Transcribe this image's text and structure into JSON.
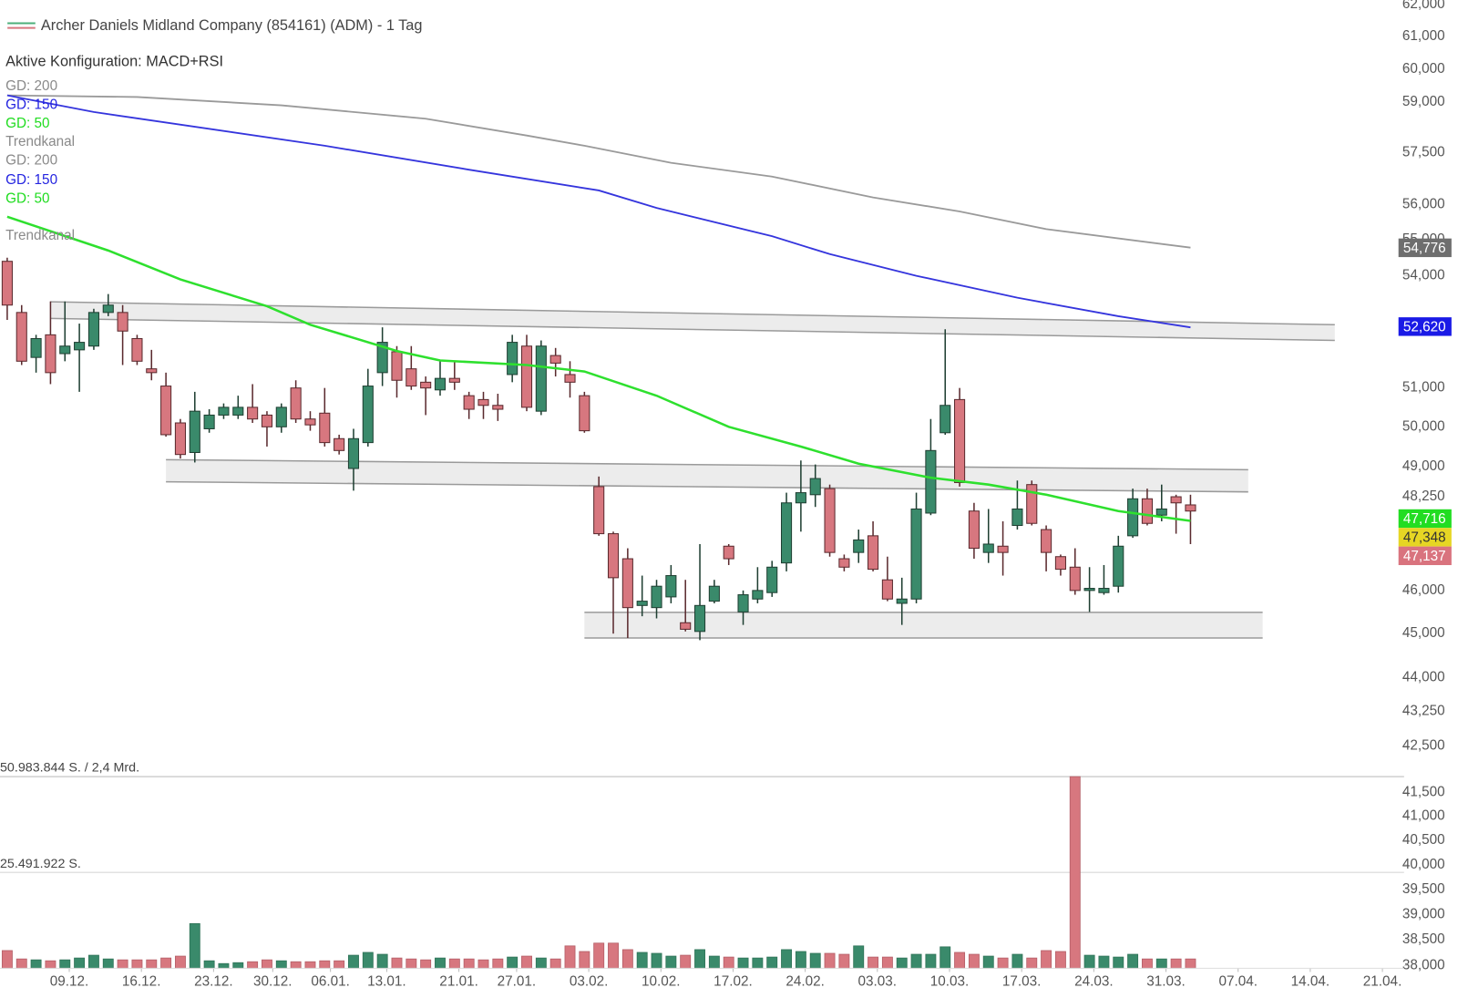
{
  "chart_data": {
    "type": "candlestick",
    "title": "Archer Daniels Midland Company (854161) (ADM) - 1 Tag",
    "subtitle": "Aktive Konfiguration: MACD+RSI",
    "legend": [
      {
        "text": "GD: 200",
        "color": "#8a8a8a"
      },
      {
        "text": "GD: 150",
        "color": "#2424e0"
      },
      {
        "text": "GD: 50",
        "color": "#1fdc1f"
      },
      {
        "text": "Trendkanal",
        "color": "#8a8a8a"
      },
      {
        "text": "GD: 200",
        "color": "#8a8a8a"
      },
      {
        "text": "GD: 150",
        "color": "#2424e0"
      },
      {
        "text": "GD: 50",
        "color": "#1fdc1f"
      },
      {
        "text": "Trendkanal",
        "color": "#8a8a8a"
      }
    ],
    "colors": {
      "up": "#3a8a6b",
      "down": "#d7777f",
      "up_edge": "#1f3f32",
      "down_edge": "#5a2a2e"
    },
    "log": true,
    "ylim": [
      38,
      62
    ],
    "yticks": [
      {
        "value": 62,
        "label": "62,000"
      },
      {
        "value": 61,
        "label": "61,000"
      },
      {
        "value": 60,
        "label": "60,000"
      },
      {
        "value": 59,
        "label": "59,000"
      },
      {
        "value": 57.5,
        "label": "57,500"
      },
      {
        "value": 56,
        "label": "56,000"
      },
      {
        "value": 55,
        "label": "55,000"
      },
      {
        "value": 54,
        "label": "54,000"
      },
      {
        "value": 51,
        "label": "51,000"
      },
      {
        "value": 50,
        "label": "50,000"
      },
      {
        "value": 49,
        "label": "49,000"
      },
      {
        "value": 48.25,
        "label": "48,250"
      },
      {
        "value": 46,
        "label": "46,000"
      },
      {
        "value": 45,
        "label": "45,000"
      },
      {
        "value": 44,
        "label": "44,000"
      },
      {
        "value": 43.25,
        "label": "43,250"
      },
      {
        "value": 42.5,
        "label": "42,500"
      },
      {
        "value": 41.5,
        "label": "41,500"
      },
      {
        "value": 41,
        "label": "41,000"
      },
      {
        "value": 40.5,
        "label": "40,500"
      },
      {
        "value": 40,
        "label": "40,000"
      },
      {
        "value": 39.5,
        "label": "39,500"
      },
      {
        "value": 39,
        "label": "39,000"
      },
      {
        "value": 38.5,
        "label": "38,500"
      },
      {
        "value": 38,
        "label": "38,000"
      }
    ],
    "xlim": [
      -0.5,
      96.8
    ],
    "xticks": [
      {
        "value": 4.3,
        "label": "09.12."
      },
      {
        "value": 9.3,
        "label": "16.12."
      },
      {
        "value": 14.3,
        "label": "23.12."
      },
      {
        "value": 18.4,
        "label": "30.12."
      },
      {
        "value": 22.4,
        "label": "06.01."
      },
      {
        "value": 26.3,
        "label": "13.01."
      },
      {
        "value": 31.3,
        "label": "21.01."
      },
      {
        "value": 35.3,
        "label": "27.01."
      },
      {
        "value": 40.3,
        "label": "03.02."
      },
      {
        "value": 45.3,
        "label": "10.02."
      },
      {
        "value": 50.3,
        "label": "17.02."
      },
      {
        "value": 55.3,
        "label": "24.02."
      },
      {
        "value": 60.3,
        "label": "03.03."
      },
      {
        "value": 65.3,
        "label": "10.03."
      },
      {
        "value": 70.3,
        "label": "17.03."
      },
      {
        "value": 75.3,
        "label": "24.03."
      },
      {
        "value": 80.3,
        "label": "31.03."
      },
      {
        "value": 85.3,
        "label": "07.04."
      },
      {
        "value": 90.3,
        "label": "14.04."
      },
      {
        "value": 95.3,
        "label": "21.04."
      }
    ],
    "open": [
      54.4,
      53.0,
      51.8,
      52.4,
      51.9,
      52.0,
      52.1,
      53.0,
      53.0,
      52.3,
      51.5,
      51.05,
      50.1,
      49.35,
      49.95,
      50.3,
      50.3,
      50.5,
      50.3,
      50.0,
      51.0,
      50.2,
      50.35,
      49.7,
      48.95,
      49.6,
      51.4,
      51.95,
      51.5,
      51.15,
      50.95,
      51.25,
      50.8,
      50.7,
      50.55,
      51.35,
      52.1,
      50.4,
      51.85,
      51.35,
      50.8,
      48.5,
      47.35,
      46.75,
      45.65,
      45.6,
      45.85,
      45.25,
      45.05,
      45.75,
      47.05,
      45.5,
      45.8,
      45.95,
      46.65,
      48.1,
      48.3,
      48.45,
      46.75,
      46.9,
      47.3,
      46.25,
      45.7,
      45.8,
      47.85,
      49.85,
      50.7,
      47.9,
      46.9,
      47.05,
      47.55,
      48.55,
      47.45,
      46.8,
      46.55,
      46.0,
      45.95,
      46.1,
      47.3,
      48.2,
      47.8,
      48.25,
      48.05
    ],
    "high": [
      54.5,
      53.2,
      52.4,
      53.3,
      53.3,
      52.7,
      53.1,
      53.5,
      53.2,
      52.4,
      52.0,
      51.4,
      50.2,
      50.9,
      50.45,
      50.6,
      50.8,
      51.1,
      50.4,
      50.6,
      51.2,
      50.4,
      51.0,
      49.8,
      49.95,
      51.5,
      52.6,
      52.1,
      52.1,
      51.3,
      51.7,
      51.7,
      50.9,
      50.9,
      50.85,
      52.4,
      52.4,
      52.25,
      52.05,
      51.7,
      50.9,
      48.75,
      47.4,
      47.0,
      46.35,
      46.25,
      46.6,
      46.25,
      47.1,
      46.25,
      47.1,
      46.0,
      46.55,
      46.7,
      48.35,
      49.15,
      49.05,
      48.55,
      46.85,
      47.45,
      47.65,
      46.8,
      46.3,
      48.35,
      50.2,
      52.55,
      51.0,
      48.1,
      47.95,
      47.65,
      48.65,
      48.65,
      47.55,
      46.85,
      47.0,
      46.55,
      46.6,
      47.3,
      48.45,
      48.45,
      48.55,
      48.3,
      48.3
    ],
    "low": [
      52.8,
      51.6,
      51.4,
      51.1,
      51.7,
      50.9,
      52.0,
      52.9,
      51.6,
      51.6,
      51.2,
      49.75,
      49.2,
      49.1,
      49.85,
      50.2,
      50.2,
      50.1,
      49.5,
      49.85,
      50.1,
      49.9,
      49.5,
      49.3,
      48.4,
      49.5,
      51.05,
      50.75,
      50.95,
      50.3,
      50.8,
      50.95,
      50.2,
      50.2,
      50.15,
      51.15,
      50.4,
      50.3,
      51.3,
      50.75,
      49.85,
      47.3,
      45.0,
      44.9,
      45.4,
      45.35,
      45.7,
      45.05,
      44.85,
      45.7,
      46.6,
      45.2,
      45.7,
      45.85,
      46.45,
      47.4,
      48.0,
      46.8,
      46.45,
      46.65,
      46.45,
      45.75,
      45.2,
      45.7,
      47.8,
      49.8,
      48.5,
      46.75,
      46.65,
      46.35,
      47.45,
      47.55,
      46.45,
      46.35,
      45.9,
      45.5,
      45.9,
      45.95,
      47.25,
      47.55,
      47.65,
      47.35,
      47.1
    ],
    "close": [
      53.2,
      51.7,
      52.3,
      51.4,
      52.1,
      52.2,
      53.0,
      53.2,
      52.5,
      51.7,
      51.4,
      49.8,
      49.3,
      50.4,
      50.3,
      50.5,
      50.5,
      50.2,
      50.0,
      50.5,
      50.2,
      50.05,
      49.6,
      49.4,
      49.7,
      51.05,
      52.2,
      51.2,
      51.05,
      51.0,
      51.25,
      51.15,
      50.45,
      50.55,
      50.45,
      52.2,
      50.5,
      52.1,
      51.65,
      51.15,
      49.9,
      47.35,
      46.3,
      45.6,
      45.75,
      46.1,
      46.35,
      45.1,
      45.65,
      46.1,
      46.75,
      45.9,
      46.0,
      46.55,
      48.1,
      48.35,
      48.7,
      46.9,
      46.55,
      47.2,
      46.5,
      45.8,
      45.8,
      47.95,
      49.4,
      50.55,
      48.6,
      47.0,
      47.1,
      46.9,
      47.95,
      47.6,
      46.9,
      46.5,
      46.0,
      46.05,
      46.05,
      47.05,
      48.2,
      47.6,
      47.95,
      48.1,
      47.9
    ],
    "moving_averages": [
      {
        "name": "GD: 200",
        "color": "#9a9a9a",
        "x": [
          0,
          9,
          19,
          29,
          36,
          40,
          46,
          53,
          60,
          66,
          72,
          82
        ],
        "values": [
          59.2,
          59.15,
          58.9,
          58.5,
          58.0,
          57.7,
          57.2,
          56.8,
          56.2,
          55.8,
          55.3,
          54.78
        ]
      },
      {
        "name": "GD: 150",
        "color": "#3535dd",
        "x": [
          0,
          6,
          22,
          32,
          41,
          45,
          53,
          57,
          63,
          70,
          77,
          82
        ],
        "values": [
          59.2,
          58.7,
          57.7,
          57.0,
          56.4,
          55.9,
          55.1,
          54.6,
          54.0,
          53.4,
          52.9,
          52.6
        ]
      },
      {
        "name": "GD: 50",
        "color": "#2ee02e",
        "x": [
          0,
          7,
          12,
          18,
          21,
          27,
          30,
          36,
          40,
          45,
          50,
          55,
          59,
          64,
          68,
          72,
          77,
          82
        ],
        "values": [
          55.65,
          54.7,
          53.9,
          53.17,
          52.67,
          51.97,
          51.72,
          51.6,
          51.43,
          50.8,
          50.0,
          49.5,
          49.07,
          48.72,
          48.55,
          48.3,
          47.9,
          47.66
        ]
      }
    ],
    "channels": [
      {
        "x": [
          3,
          92
        ],
        "upper": [
          53.29,
          52.67
        ],
        "lower": [
          52.84,
          52.25
        ]
      },
      {
        "x": [
          11,
          86
        ],
        "upper": [
          49.17,
          48.92
        ],
        "lower": [
          48.62,
          48.37
        ]
      },
      {
        "x": [
          40,
          87
        ],
        "upper": [
          45.49,
          45.49
        ],
        "lower": [
          44.9,
          44.9
        ]
      }
    ],
    "volume": {
      "values": [
        4700000,
        2470000,
        2230000,
        1980000,
        2230000,
        2720000,
        3460000,
        2470000,
        2230000,
        2230000,
        2230000,
        2720000,
        3220000,
        11880000,
        1980000,
        1240000,
        1480000,
        1730000,
        2230000,
        1980000,
        1730000,
        1730000,
        1980000,
        1980000,
        3460000,
        4210000,
        3710000,
        2720000,
        2470000,
        2230000,
        2720000,
        2470000,
        2470000,
        2230000,
        2470000,
        2970000,
        3220000,
        2720000,
        2470000,
        5940000,
        4450000,
        6680000,
        6680000,
        4950000,
        4210000,
        3960000,
        3220000,
        3460000,
        4950000,
        3220000,
        2970000,
        2720000,
        2720000,
        2970000,
        4950000,
        4450000,
        3960000,
        3960000,
        3710000,
        5940000,
        2970000,
        2970000,
        2720000,
        3710000,
        3710000,
        5690000,
        4210000,
        3710000,
        3220000,
        2720000,
        3710000,
        2720000,
        4700000,
        4450000,
        50983844,
        3460000,
        3220000,
        2970000,
        3710000,
        2470000,
        2470000,
        2470000,
        2470000
      ],
      "ylim": [
        0,
        50983844
      ],
      "yticks": [
        {
          "value": 50983844,
          "label": "50.983.844 S. / 2,4 Mrd."
        },
        {
          "value": 25491922,
          "label": "25.491.922 S."
        }
      ]
    },
    "price_tags": [
      {
        "value": 54.776,
        "label": "54,776",
        "color": "#6e6e6e",
        "text_color": "#ffffff"
      },
      {
        "value": 52.62,
        "label": "52,620",
        "color": "#1a1ae6",
        "text_color": "#ffffff"
      },
      {
        "value": 47.716,
        "label": "47,716",
        "color": "#22dd22",
        "text_color": "#ffffff"
      },
      {
        "value": 47.348,
        "label": "47,348",
        "color": "#e6d624",
        "text_color": "#333333"
      },
      {
        "value": 47.137,
        "label": "47,137",
        "color": "#d9737e",
        "text_color": "#ffffff"
      }
    ]
  }
}
